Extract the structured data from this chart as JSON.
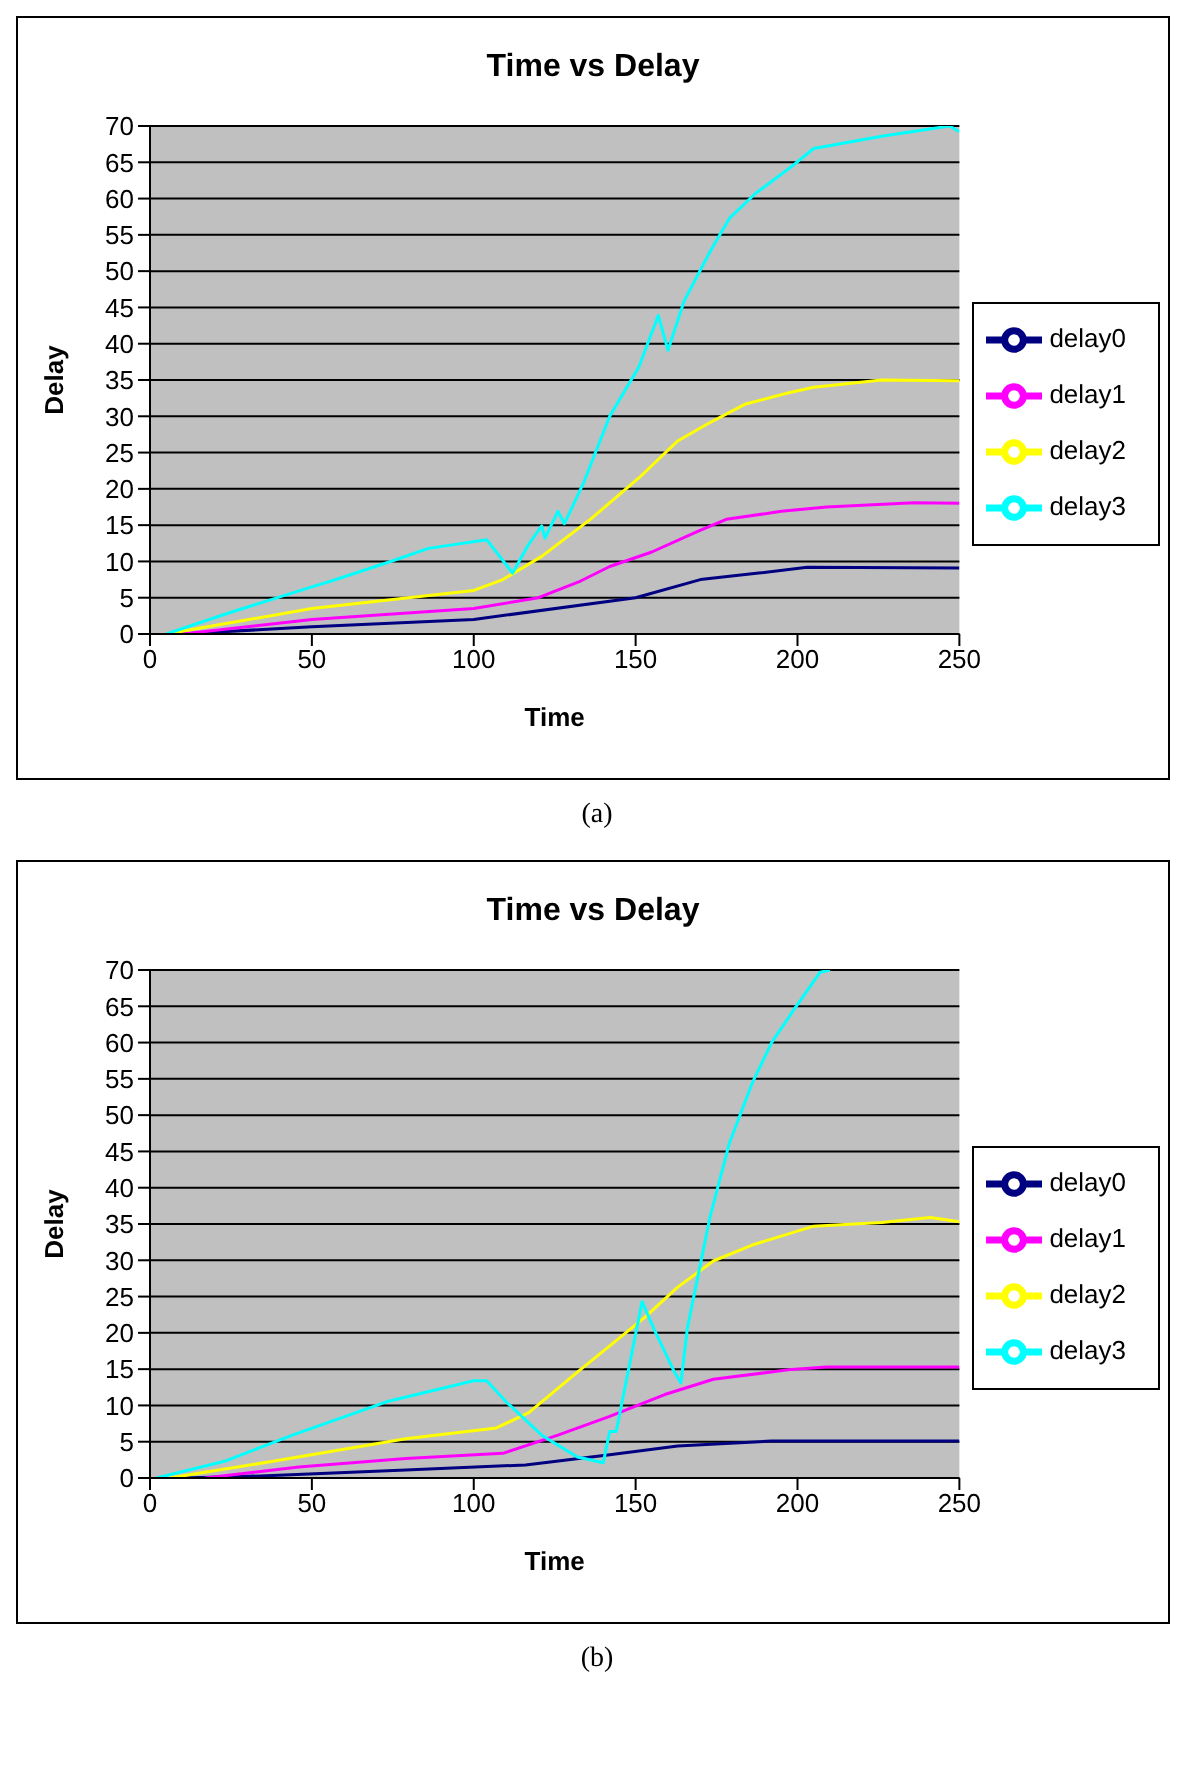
{
  "chart_data": [
    {
      "type": "line",
      "title": "Time vs Delay",
      "xlabel": "Time",
      "ylabel": "Delay",
      "xlim": [
        0,
        250
      ],
      "xticks": [
        0,
        50,
        100,
        150,
        200,
        250
      ],
      "ylim": [
        0,
        70
      ],
      "yticks": [
        0,
        5,
        10,
        15,
        20,
        25,
        30,
        35,
        40,
        45,
        50,
        55,
        60,
        65,
        70
      ],
      "grid": "y",
      "legend": "right",
      "annotations": [
        "(a)"
      ],
      "series": [
        {
          "name": "delay0",
          "color": "#000080",
          "x": [
            10,
            50,
            100,
            150,
            170,
            188,
            203,
            250
          ],
          "values": [
            0,
            1,
            2,
            5,
            7.5,
            8.4,
            9.2,
            9.1
          ]
        },
        {
          "name": "delay1",
          "color": "#ff00ff",
          "x": [
            10,
            50,
            100,
            120,
            133,
            142,
            155,
            169,
            178,
            195,
            209,
            236,
            250
          ],
          "values": [
            0,
            2,
            3.5,
            5,
            7.3,
            9.3,
            11.3,
            14.1,
            15.8,
            16.9,
            17.5,
            18.1,
            18
          ]
        },
        {
          "name": "delay2",
          "color": "#ffff00",
          "x": [
            5,
            50,
            100,
            109,
            121,
            136,
            151,
            163,
            172,
            184,
            197,
            205,
            226,
            250
          ],
          "values": [
            0,
            3.5,
            6,
            7.5,
            10.7,
            15.8,
            21.5,
            26.6,
            28.9,
            31.7,
            33.2,
            34,
            35,
            34.9
          ]
        },
        {
          "name": "delay3",
          "color": "#00ffff",
          "x": [
            5,
            25,
            50,
            56,
            75,
            86,
            104,
            112,
            117,
            121,
            122,
            126,
            128,
            134,
            142,
            151,
            157,
            160,
            165,
            173,
            179,
            187,
            199,
            205,
            226,
            247,
            250
          ],
          "values": [
            0,
            3,
            6.5,
            7.3,
            10.1,
            11.8,
            13,
            8.4,
            12.4,
            14.9,
            13.2,
            16.9,
            15.2,
            20.9,
            30,
            36.8,
            43.9,
            39.1,
            45.9,
            52.7,
            57.3,
            60.7,
            64.7,
            66.9,
            68.6,
            70,
            69.2
          ]
        }
      ]
    },
    {
      "type": "line",
      "title": "Time vs Delay",
      "xlabel": "Time",
      "ylabel": "Delay",
      "xlim": [
        0,
        250
      ],
      "xticks": [
        0,
        50,
        100,
        150,
        200,
        250
      ],
      "ylim": [
        0,
        70
      ],
      "yticks": [
        0,
        5,
        10,
        15,
        20,
        25,
        30,
        35,
        40,
        45,
        50,
        55,
        60,
        65,
        70
      ],
      "grid": "y",
      "legend": "right",
      "annotations": [
        "(b)"
      ],
      "series": [
        {
          "name": "delay0",
          "color": "#000080",
          "x": [
            10,
            36,
            79,
            116,
            142,
            163,
            192,
            250
          ],
          "values": [
            0,
            0.3,
            1.1,
            1.8,
            3.2,
            4.4,
            5.1,
            5.1
          ]
        },
        {
          "name": "delay1",
          "color": "#ff00ff",
          "x": [
            17,
            46,
            79,
            109,
            126,
            142,
            159,
            174,
            197,
            209,
            250
          ],
          "values": [
            0,
            1.5,
            2.7,
            3.4,
            5.9,
            8.5,
            11.5,
            13.6,
            14.9,
            15.3,
            15.3
          ]
        },
        {
          "name": "delay2",
          "color": "#ffff00",
          "x": [
            6,
            38,
            79,
            107,
            117,
            132,
            142,
            153,
            163,
            174,
            186,
            205,
            226,
            241,
            250
          ],
          "values": [
            0,
            2.3,
            5.4,
            6.9,
            9,
            14.6,
            18.2,
            22.2,
            26.3,
            29.9,
            32.1,
            34.7,
            35.2,
            35.9,
            35.3
          ]
        },
        {
          "name": "delay3",
          "color": "#00ffff",
          "x": [
            2,
            23,
            44,
            73,
            100,
            104,
            110,
            121,
            132,
            140,
            142,
            144,
            152,
            156,
            162,
            164,
            166,
            173,
            179,
            186,
            192,
            199,
            207,
            210
          ],
          "values": [
            0,
            2.3,
            5.9,
            10.5,
            13.4,
            13.4,
            10.5,
            5.9,
            2.9,
            2.1,
            6.4,
            6.4,
            24.3,
            20.2,
            14.6,
            13.1,
            20.7,
            36,
            46.2,
            54.4,
            60,
            64.6,
            69.7,
            70
          ]
        }
      ]
    }
  ]
}
